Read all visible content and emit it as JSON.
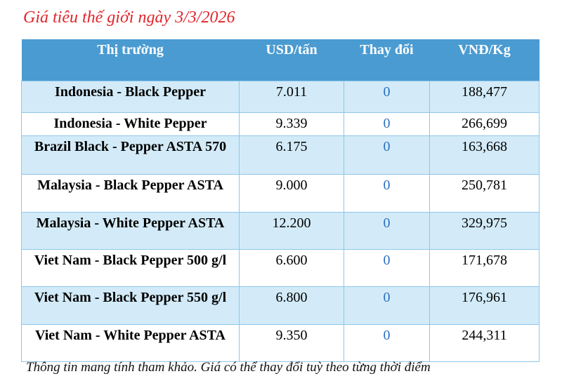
{
  "title": "Giá tiêu thế giới ngày 3/3/2026",
  "headers": [
    "Thị trường",
    "USD/tấn",
    "Thay đổi",
    "VNĐ/Kg"
  ],
  "rows": [
    {
      "market": "Indonesia - Black Pepper",
      "usd": "7.011",
      "change": "0",
      "vnd": "188,477"
    },
    {
      "market": "Indonesia - White Pepper",
      "usd": "9.339",
      "change": "0",
      "vnd": "266,699"
    },
    {
      "market": "Brazil Black - Pepper ASTA 570",
      "usd": "6.175",
      "change": "0",
      "vnd": "163,668"
    },
    {
      "market": "Malaysia - Black Pepper ASTA",
      "usd": "9.000",
      "change": "0",
      "vnd": "250,781"
    },
    {
      "market": "Malaysia - White Pepper ASTA",
      "usd": "12.200",
      "change": "0",
      "vnd": "329,975"
    },
    {
      "market": "Viet Nam - Black Pepper 500 g/l",
      "usd": "6.600",
      "change": "0",
      "vnd": "171,678"
    },
    {
      "market": "Viet Nam - Black Pepper 550 g/l",
      "usd": "6.800",
      "change": "0",
      "vnd": "176,961"
    },
    {
      "market": "Viet Nam - White Pepper ASTA",
      "usd": "9.350",
      "change": "0",
      "vnd": "244,311"
    }
  ],
  "note": "Thông tin mang tính tham khảo. Giá có thể thay đổi tuỳ theo từng thời điểm",
  "colors": {
    "title": "#e0252b",
    "header_bg": "#4a9bd1",
    "alt_row": "#d3ebf8",
    "change": "#2a6fc0"
  }
}
